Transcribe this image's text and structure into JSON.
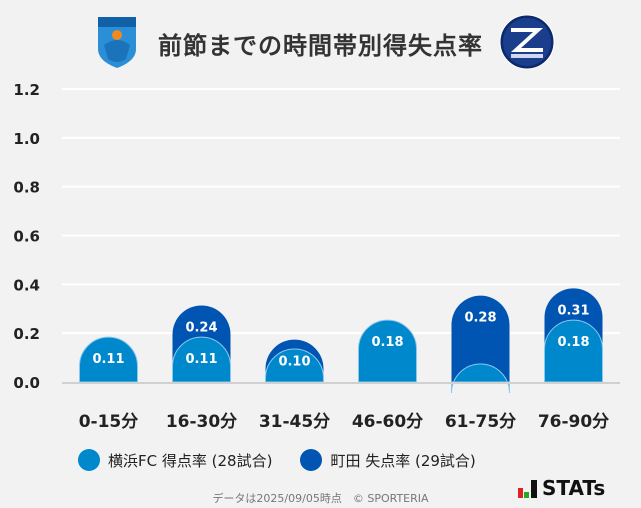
{
  "header": {
    "title": "前節までの時間帯別得失点率",
    "left_logo_text": "YOKOHAMA FC",
    "right_logo_text": "FC MACHIDA ZELVIA"
  },
  "chart_data": {
    "type": "bar",
    "title": "前節までの時間帯別得失点率",
    "categories": [
      "0-15分",
      "16-30分",
      "31-45分",
      "46-60分",
      "61-75分",
      "76-90分"
    ],
    "ylim": [
      0,
      1.2
    ],
    "yticks": [
      "0.0",
      "0.2",
      "0.4",
      "0.6",
      "0.8",
      "1.0",
      "1.2"
    ],
    "grid": true,
    "legend_placement": "bottom-left",
    "series": [
      {
        "name": "町田 失点率 (29試合)",
        "color": "#0055b3",
        "values": [
          0.1,
          0.24,
          0.1,
          0.17,
          0.28,
          0.31
        ],
        "labels": [
          "",
          "0.24",
          "0.10",
          "",
          "0.28",
          "0.31"
        ]
      },
      {
        "name": "横浜FC 得点率 (28試合)",
        "color": "#0088cc",
        "values": [
          0.11,
          0.11,
          0.06,
          0.18,
          0,
          0.18
        ],
        "labels": [
          "0.11",
          "0.11",
          "",
          "0.18",
          "",
          "0.18"
        ]
      }
    ]
  },
  "legend": [
    {
      "label": "横浜FC 得点率 (28試合)",
      "color": "#0088cc"
    },
    {
      "label": "町田 失点率 (29試合)",
      "color": "#0055b3"
    }
  ],
  "footer": {
    "note": "データは2025/09/05時点　© SPORTERIA",
    "brand": "STATs"
  }
}
